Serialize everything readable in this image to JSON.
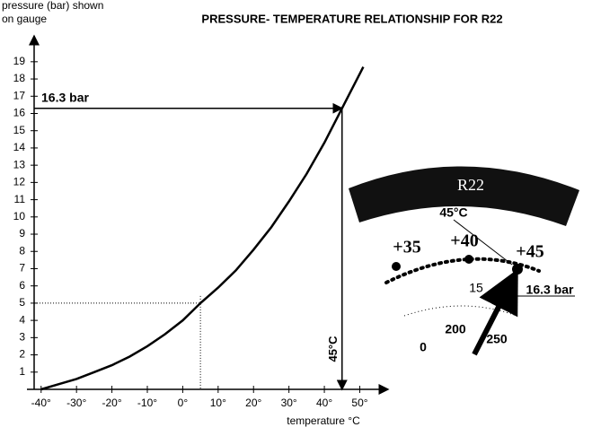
{
  "chart_data": {
    "type": "line",
    "title": "PRESSURE- TEMPERATURE RELATIONSHIP FOR R22",
    "y_label": [
      "pressure (bar) shown",
      "on gauge"
    ],
    "x_label": "temperature °C",
    "series": [
      {
        "name": "R22",
        "color": "#000000",
        "x": [
          -40,
          -35,
          -30,
          -25,
          -20,
          -15,
          -10,
          -5,
          0,
          5,
          10,
          15,
          20,
          25,
          30,
          35,
          40,
          45,
          50,
          51
        ],
        "values": [
          0,
          0.3,
          0.6,
          1.0,
          1.4,
          1.9,
          2.5,
          3.2,
          4.0,
          5.0,
          5.9,
          6.9,
          8.1,
          9.4,
          10.9,
          12.5,
          14.3,
          16.3,
          18.3,
          18.7
        ]
      }
    ],
    "xlim": [
      -44,
      58
    ],
    "ylim": [
      0,
      20.5
    ],
    "xticks": [
      {
        "value": -40,
        "label": "-40°"
      },
      {
        "value": -30,
        "label": "-30°"
      },
      {
        "value": -20,
        "label": "-20°"
      },
      {
        "value": -10,
        "label": "-10°"
      },
      {
        "value": 0,
        "label": "0°"
      },
      {
        "value": 10,
        "label": "10°"
      },
      {
        "value": 20,
        "label": "20°"
      },
      {
        "value": 30,
        "label": "30°"
      },
      {
        "value": 40,
        "label": "40°"
      },
      {
        "value": 50,
        "label": "50°"
      }
    ],
    "yticks": [
      1,
      2,
      3,
      4,
      5,
      6,
      7,
      8,
      9,
      10,
      11,
      12,
      13,
      14,
      15,
      16,
      17,
      18,
      19
    ],
    "grid": false,
    "guides": [
      {
        "x": 45,
        "y": 16.3,
        "style": "solid"
      },
      {
        "x": 5,
        "y": 5,
        "style": "dotted"
      }
    ],
    "annotations": [
      "16.3 bar",
      "45°C"
    ],
    "gauge": {
      "title": "R22",
      "labels": [
        "45°C",
        "+35",
        "+40",
        "+45",
        "15",
        "16.3 bar",
        "200",
        "250",
        "0"
      ]
    }
  }
}
